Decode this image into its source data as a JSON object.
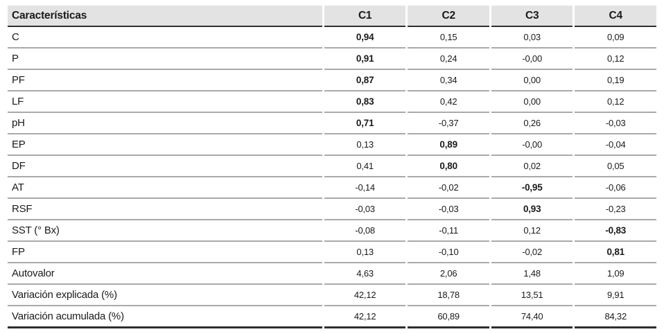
{
  "table": {
    "header": {
      "feature_label": "Características",
      "columns": [
        "C1",
        "C2",
        "C3",
        "C4"
      ]
    },
    "rows": [
      {
        "label": "C",
        "values": [
          "0,94",
          "0,15",
          "0,03",
          "0,09"
        ],
        "bold_col": 0
      },
      {
        "label": "P",
        "values": [
          "0,91",
          "0,24",
          "-0,00",
          "0,12"
        ],
        "bold_col": 0
      },
      {
        "label": "PF",
        "values": [
          "0,87",
          "0,34",
          "0,00",
          "0,19"
        ],
        "bold_col": 0
      },
      {
        "label": "LF",
        "values": [
          "0,83",
          "0,42",
          "0,00",
          "0,12"
        ],
        "bold_col": 0
      },
      {
        "label": "pH",
        "values": [
          "0,71",
          "-0,37",
          "0,26",
          "-0,03"
        ],
        "bold_col": 0
      },
      {
        "label": "EP",
        "values": [
          "0,13",
          "0,89",
          "-0,00",
          "-0,04"
        ],
        "bold_col": 1
      },
      {
        "label": "DF",
        "values": [
          "0,41",
          "0,80",
          "0,02",
          "0,05"
        ],
        "bold_col": 1
      },
      {
        "label": "AT",
        "values": [
          "-0,14",
          "-0,02",
          "-0,95",
          "-0,06"
        ],
        "bold_col": 2
      },
      {
        "label": "RSF",
        "values": [
          "-0,03",
          "-0,03",
          "0,93",
          "-0,23"
        ],
        "bold_col": 2
      },
      {
        "label": "SST (° Bx)",
        "values": [
          "-0,08",
          "-0,11",
          "0,12",
          "-0,83"
        ],
        "bold_col": 3
      },
      {
        "label": "FP",
        "values": [
          "0,13",
          "-0,10",
          "-0,02",
          "0,81"
        ],
        "bold_col": 3
      },
      {
        "label": "Autovalor",
        "values": [
          "4,63",
          "2,06",
          "1,48",
          "1,09"
        ],
        "bold_col": -1
      },
      {
        "label": "Variación explicada (%)",
        "values": [
          "42,12",
          "18,78",
          "13,51",
          "9,91"
        ],
        "bold_col": -1
      },
      {
        "label": "Variación acumulada (%)",
        "values": [
          "42,12",
          "60,89",
          "74,40",
          "84,32"
        ],
        "bold_col": -1
      }
    ]
  },
  "colors": {
    "header_bg": "#e3e3e3",
    "row_line": "#a9a9a9",
    "strong_line": "#2e2e2e",
    "text": "#1a1a1a"
  }
}
